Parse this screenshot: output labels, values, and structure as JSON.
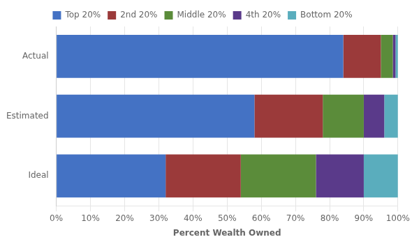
{
  "chart_data": {
    "type": "bar",
    "orientation": "horizontal",
    "stacked": true,
    "xlabel": "Percent Wealth Owned",
    "categories": [
      "Actual",
      "Estimated",
      "Ideal"
    ],
    "series": [
      {
        "name": "Top 20%",
        "color": "#4472C4",
        "values": [
          84,
          58,
          32
        ]
      },
      {
        "name": "2nd 20%",
        "color": "#9B3A3A",
        "values": [
          11,
          20,
          22
        ]
      },
      {
        "name": "Middle 20%",
        "color": "#5B8C3A",
        "values": [
          3.5,
          12,
          22
        ]
      },
      {
        "name": "4th 20%",
        "color": "#5A3A8A",
        "values": [
          0.8,
          6,
          14
        ]
      },
      {
        "name": "Bottom 20%",
        "color": "#5AADBD",
        "values": [
          0.7,
          4,
          10
        ]
      }
    ],
    "xlim": [
      0,
      100
    ],
    "xticks": [
      {
        "value": 0,
        "label": "0%"
      },
      {
        "value": 10,
        "label": "10%"
      },
      {
        "value": 20,
        "label": "20%"
      },
      {
        "value": 30,
        "label": "30%"
      },
      {
        "value": 40,
        "label": "40%"
      },
      {
        "value": 50,
        "label": "50%"
      },
      {
        "value": 60,
        "label": "60%"
      },
      {
        "value": 70,
        "label": "70%"
      },
      {
        "value": 80,
        "label": "80%"
      },
      {
        "value": 90,
        "label": "90%"
      },
      {
        "value": 100,
        "label": "100%"
      }
    ],
    "grid": "x",
    "legend": "top"
  }
}
